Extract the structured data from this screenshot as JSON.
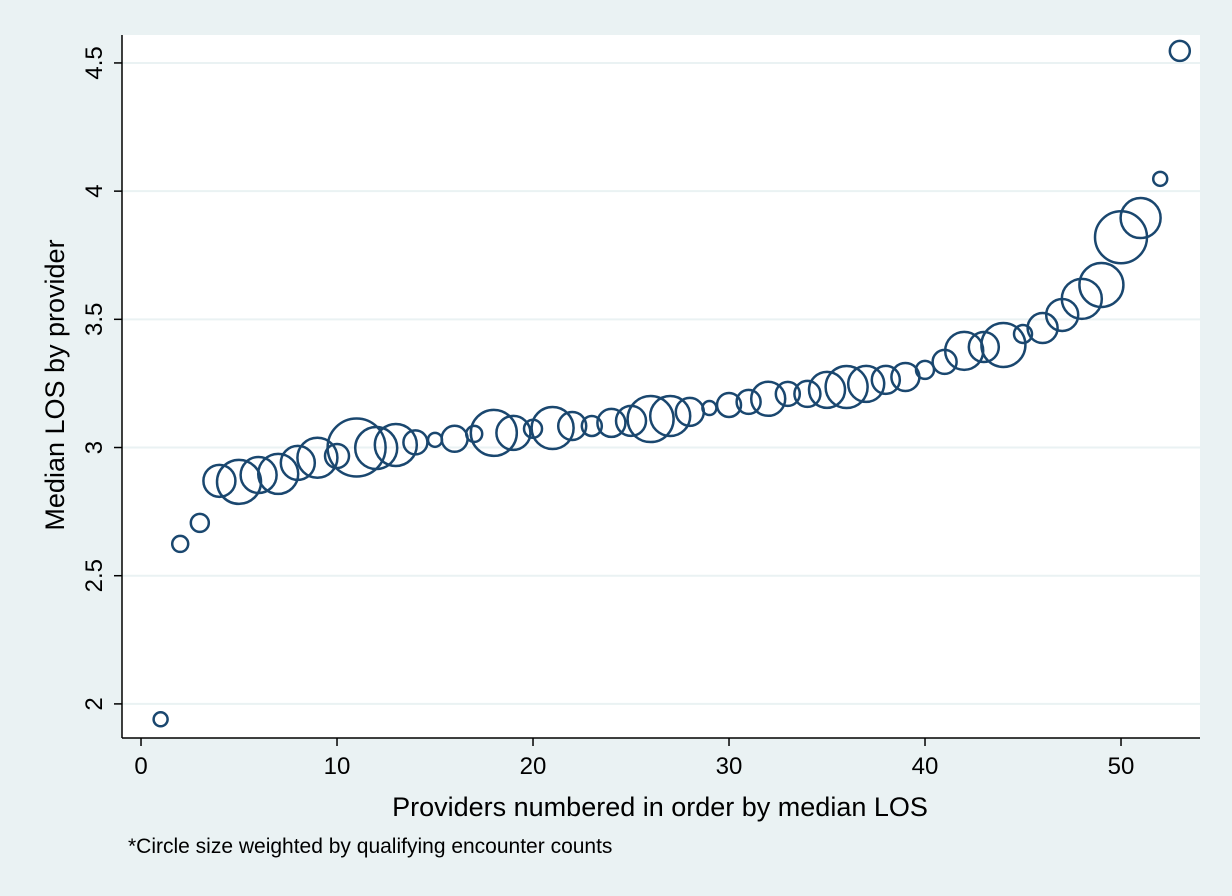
{
  "chart_data": {
    "type": "scatter",
    "xlabel": "Providers numbered in order by median LOS",
    "ylabel": "Median LOS by provider",
    "note": "*Circle size weighted by qualifying encounter counts",
    "x": [
      1,
      2,
      3,
      4,
      5,
      6,
      7,
      8,
      9,
      10,
      11,
      12,
      13,
      14,
      15,
      16,
      17,
      18,
      19,
      20,
      21,
      22,
      23,
      24,
      25,
      26,
      27,
      28,
      29,
      30,
      31,
      32,
      33,
      34,
      35,
      36,
      37,
      38,
      39,
      40,
      41,
      42,
      43,
      44,
      45,
      46,
      47,
      48,
      49,
      50,
      51,
      52,
      53
    ],
    "y": [
      1.94,
      2.624,
      2.706,
      2.87,
      2.866,
      2.893,
      2.897,
      2.94,
      2.96,
      2.967,
      3.0,
      2.998,
      3.01,
      3.02,
      3.03,
      3.034,
      3.053,
      3.057,
      3.057,
      3.073,
      3.076,
      3.084,
      3.084,
      3.096,
      3.104,
      3.111,
      3.123,
      3.139,
      3.154,
      3.166,
      3.178,
      3.19,
      3.209,
      3.209,
      3.225,
      3.236,
      3.248,
      3.264,
      3.275,
      3.303,
      3.334,
      3.377,
      3.392,
      3.4,
      3.443,
      3.466,
      3.517,
      3.58,
      3.634,
      3.82,
      3.895,
      4.048,
      4.547
    ],
    "sizes": [
      49,
      64,
      81,
      256,
      484,
      324,
      400,
      289,
      400,
      144,
      841,
      441,
      441,
      144,
      49,
      169,
      64,
      529,
      289,
      81,
      441,
      196,
      100,
      196,
      225,
      529,
      400,
      196,
      49,
      144,
      144,
      289,
      144,
      169,
      324,
      441,
      324,
      196,
      196,
      81,
      144,
      361,
      225,
      484,
      81,
      225,
      256,
      400,
      484,
      676,
      400,
      49,
      100
    ],
    "color": "#1a476f",
    "xlim": [
      -0.97,
      54.03
    ],
    "ylim": [
      1.867,
      4.609
    ],
    "xticks": [
      0,
      10,
      20,
      30,
      40,
      50
    ],
    "yticks": [
      2,
      2.5,
      3,
      3.5,
      4,
      4.5
    ],
    "grid": true
  }
}
